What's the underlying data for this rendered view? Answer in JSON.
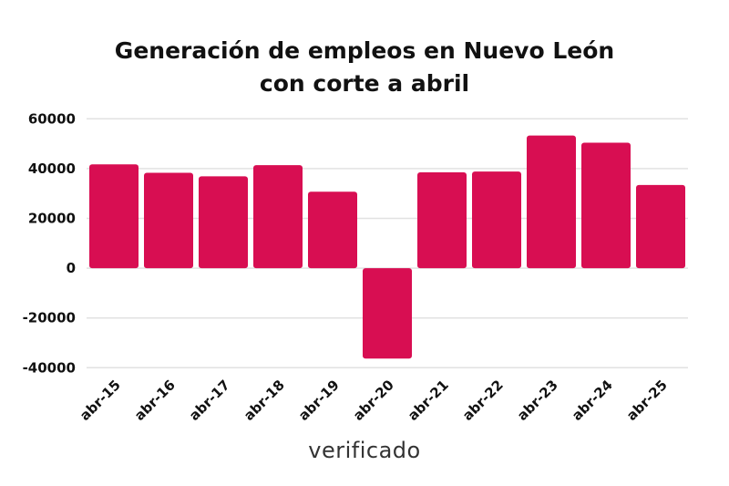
{
  "chart_data": {
    "type": "bar",
    "title_line1": "Generación de empleos en Nuevo León",
    "title_line2": "con corte a abril",
    "xlabel": "",
    "ylabel": "",
    "categories": [
      "abr-15",
      "abr-16",
      "abr-17",
      "abr-18",
      "abr-19",
      "abr-20",
      "abr-21",
      "abr-22",
      "abr-23",
      "abr-24",
      "abr-25"
    ],
    "values": [
      41700,
      38300,
      36900,
      41400,
      30700,
      -36300,
      38500,
      38800,
      53300,
      50400,
      33400
    ],
    "ylim": [
      -40000,
      60000
    ],
    "yticks": [
      60000,
      40000,
      20000,
      0,
      -20000,
      -40000
    ],
    "grid": true,
    "bar_color": "#d80e52"
  },
  "logo": {
    "text": "verificado"
  }
}
